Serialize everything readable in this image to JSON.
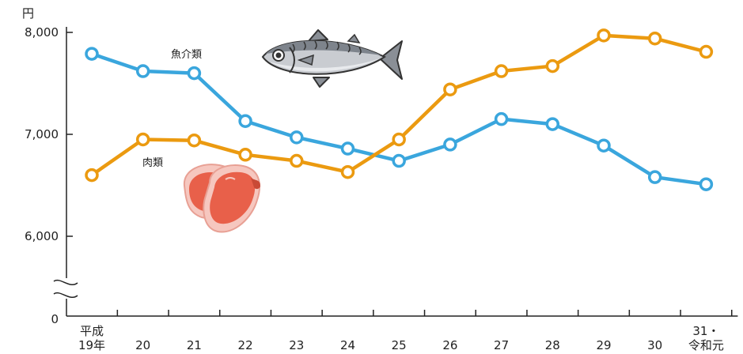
{
  "chart_data": {
    "type": "line",
    "unit_label": "円",
    "y_ticks": [
      {
        "value": 8000,
        "label": "8,000"
      },
      {
        "value": 7000,
        "label": "7,000"
      },
      {
        "value": 6000,
        "label": "6,000"
      }
    ],
    "y_zero_label": "0",
    "ylim": [
      5400,
      8200
    ],
    "categories": [
      {
        "line1": "平成",
        "line2": "19年"
      },
      {
        "line1": "",
        "line2": "20"
      },
      {
        "line1": "",
        "line2": "21"
      },
      {
        "line1": "",
        "line2": "22"
      },
      {
        "line1": "",
        "line2": "23"
      },
      {
        "line1": "",
        "line2": "24"
      },
      {
        "line1": "",
        "line2": "25"
      },
      {
        "line1": "",
        "line2": "26"
      },
      {
        "line1": "",
        "line2": "27"
      },
      {
        "line1": "",
        "line2": "28"
      },
      {
        "line1": "",
        "line2": "29"
      },
      {
        "line1": "",
        "line2": "30"
      },
      {
        "line1": "31・",
        "line2": "令和元"
      }
    ],
    "series": [
      {
        "name": "魚介類",
        "color": "#3aa6dd",
        "values": [
          7790,
          7620,
          7600,
          7130,
          6970,
          6860,
          6740,
          6900,
          7150,
          7100,
          6890,
          6580,
          6510
        ]
      },
      {
        "name": "肉類",
        "color": "#eb9a10",
        "values": [
          6600,
          6950,
          6940,
          6800,
          6740,
          6630,
          6950,
          7440,
          7620,
          7670,
          7970,
          7940,
          7810
        ]
      }
    ],
    "illustrations": [
      "fish-illustration",
      "meat-illustration"
    ]
  }
}
